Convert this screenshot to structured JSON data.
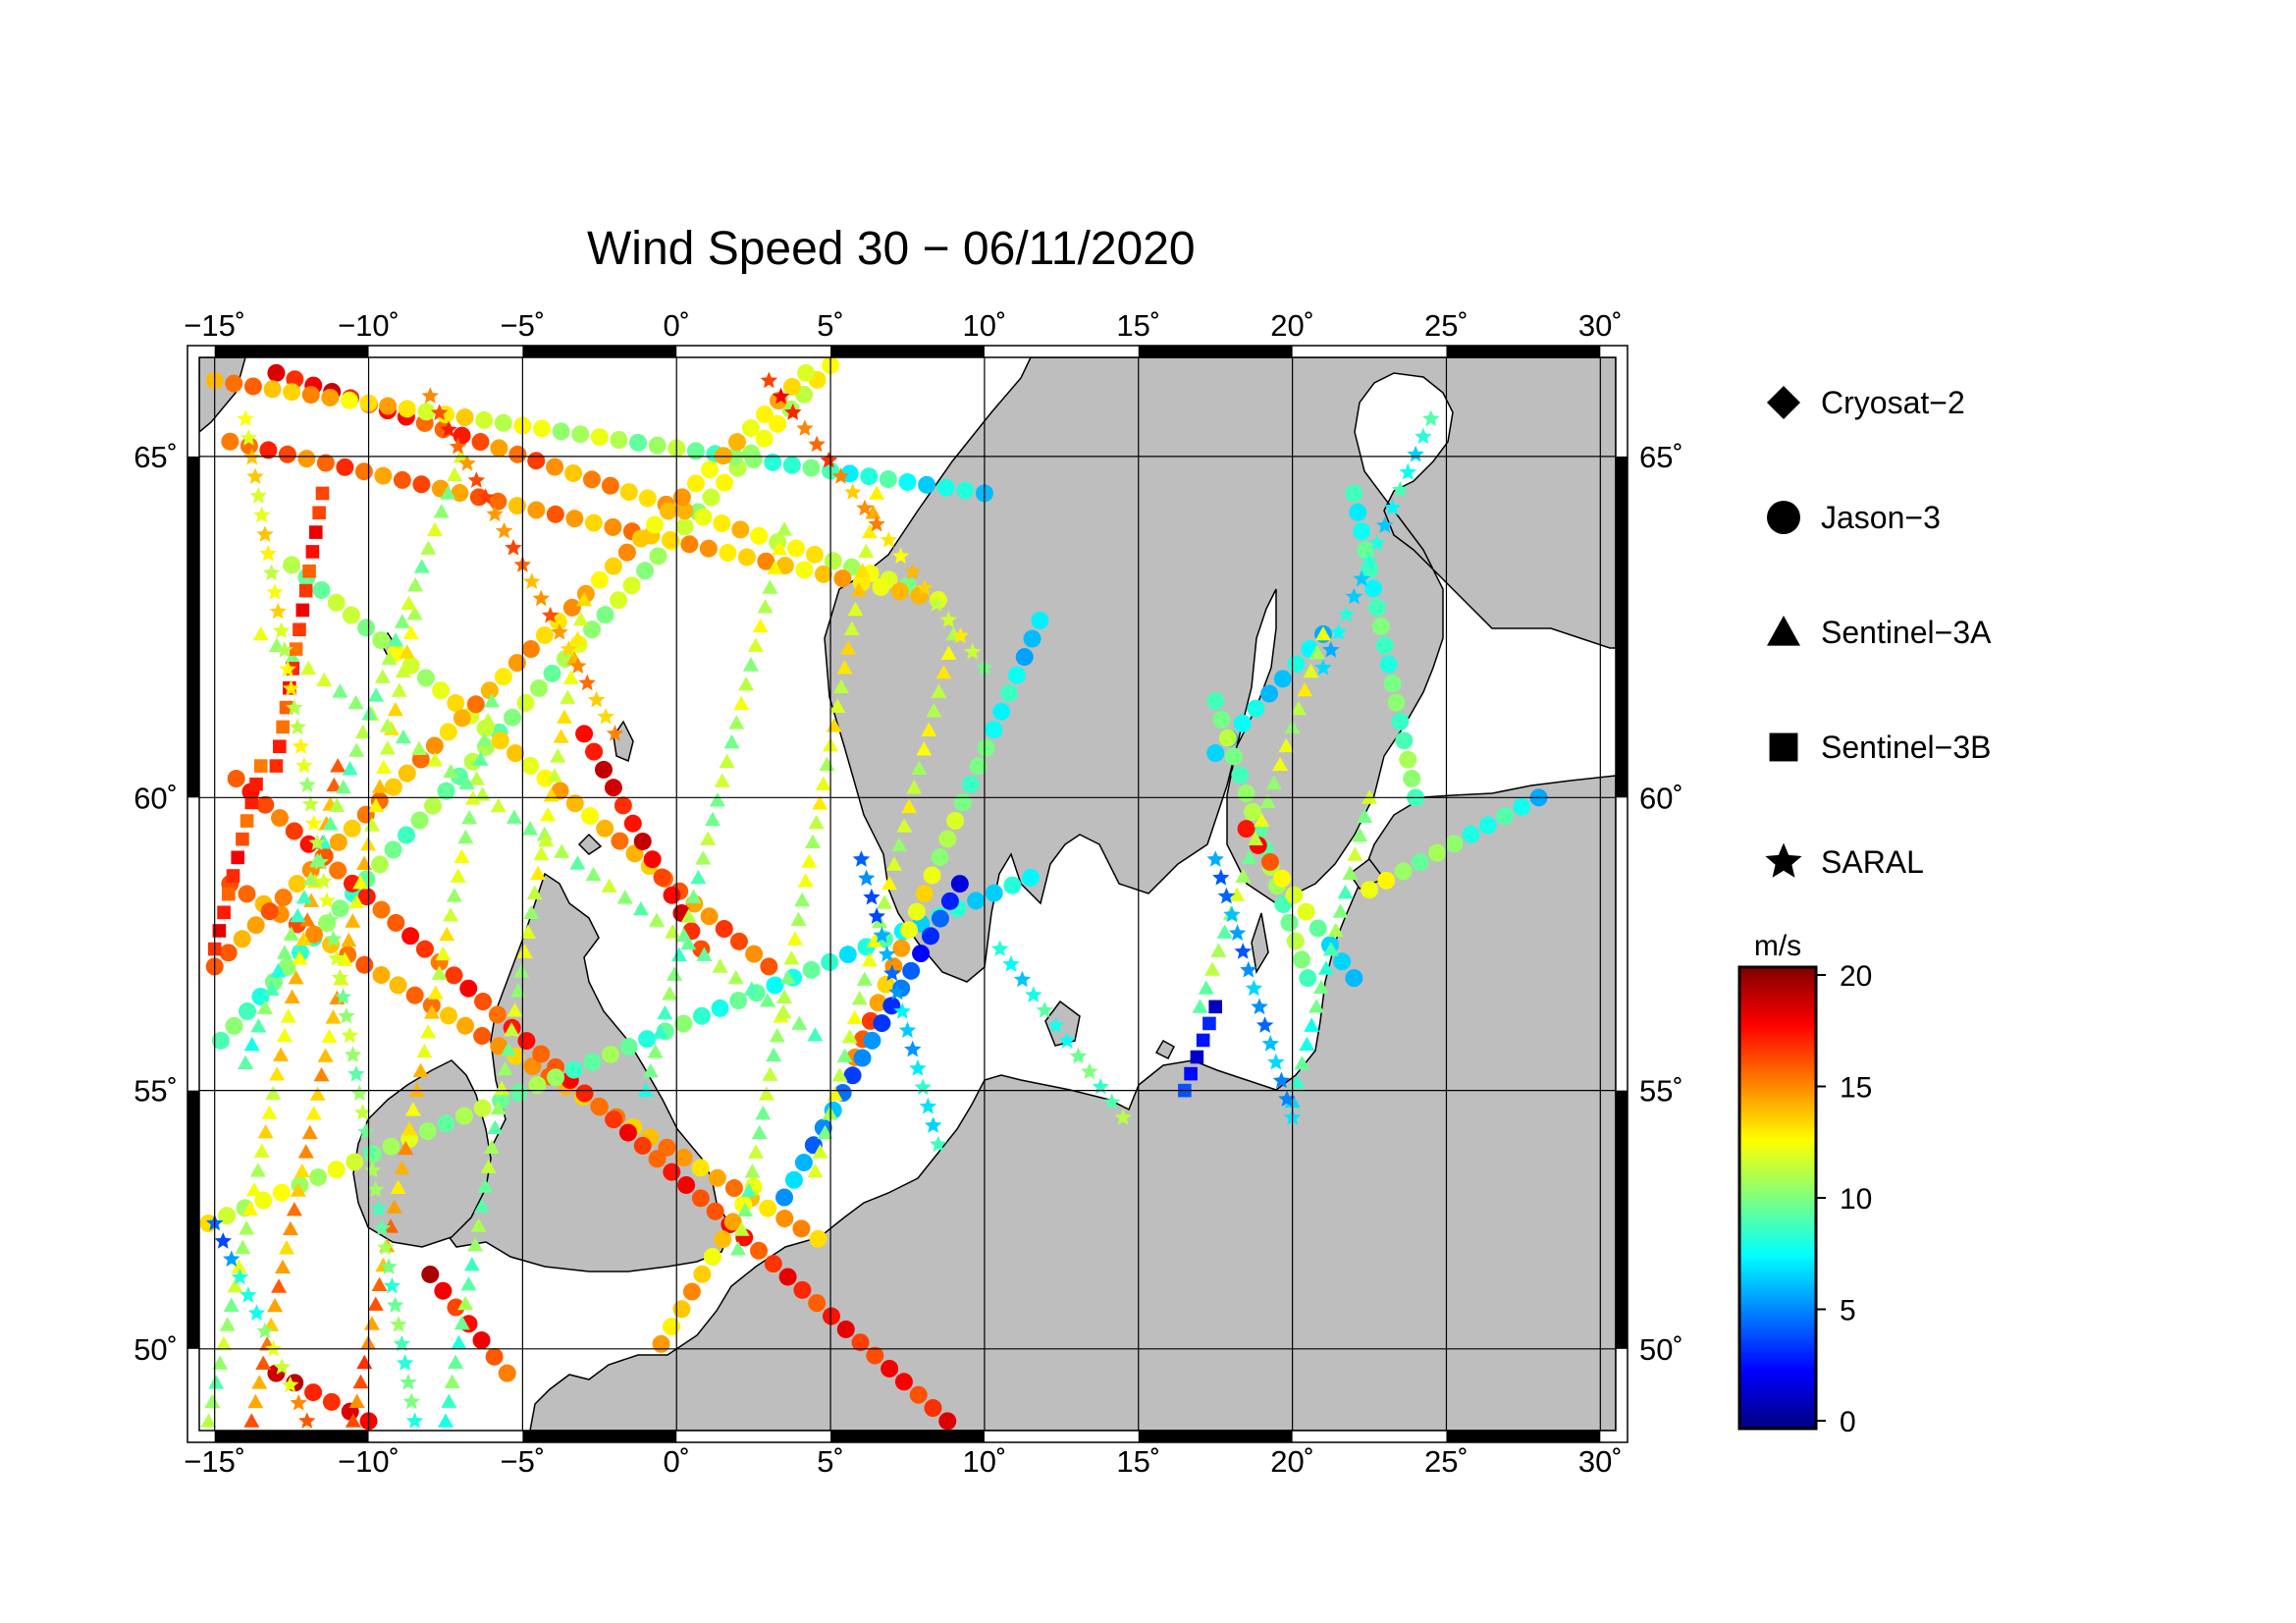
{
  "title": "Wind Speed 30 − 06/11/2020",
  "map": {
    "lon_range": [
      -15.5,
      30.5
    ],
    "lat_range": [
      48.3,
      66.3
    ],
    "lon_ticks": [
      -15,
      -10,
      -5,
      0,
      5,
      10,
      15,
      20,
      25,
      30
    ],
    "lat_ticks": [
      50,
      55,
      60,
      65
    ],
    "lon_tick_labels": [
      "−15˚",
      "−10˚",
      "−5˚",
      "0˚",
      "5˚",
      "10˚",
      "15˚",
      "20˚",
      "25˚",
      "30˚"
    ],
    "lat_tick_labels": [
      "50˚",
      "55˚",
      "60˚",
      "65˚"
    ],
    "ocean_color": "#ffffff",
    "land_color": "#bebebe",
    "grid": true
  },
  "legend": {
    "items": [
      {
        "label": "Cryosat−2",
        "marker": "diamond-icon"
      },
      {
        "label": "Jason−3",
        "marker": "circle-icon"
      },
      {
        "label": "Sentinel−3A",
        "marker": "triangle-icon"
      },
      {
        "label": "Sentinel−3B",
        "marker": "square-icon"
      },
      {
        "label": "SARAL",
        "marker": "star-icon"
      }
    ]
  },
  "colorbar": {
    "unit": "m/s",
    "min": 0,
    "max": 20,
    "tick_values": [
      0,
      5,
      10,
      15,
      20
    ],
    "tick_labels": [
      "0",
      "5",
      "10",
      "15",
      "20"
    ],
    "colors": [
      "#00007f",
      "#0000ff",
      "#007fff",
      "#00ffff",
      "#7fff7f",
      "#ffff00",
      "#ff7f00",
      "#ff0000",
      "#7f0000"
    ]
  },
  "chart_data": {
    "type": "scatter",
    "title": "Wind Speed 30 − 06/11/2020",
    "value_unit": "m/s",
    "tracks": [
      {
        "satellite": "Jason−3",
        "lon": [
          -14.8,
          5.0
        ],
        "lat": [
          55.9,
          66.2
        ],
        "wind": [
          9,
          12
        ]
      },
      {
        "satellite": "Jason−3",
        "lon": [
          -14.5,
          4.6
        ],
        "lat": [
          58.6,
          52.2
        ],
        "wind": [
          15,
          14
        ]
      },
      {
        "satellite": "Jason−3",
        "lon": [
          -12.5,
          3.0
        ],
        "lat": [
          63.5,
          57.2
        ],
        "wind": [
          10,
          16
        ]
      },
      {
        "satellite": "Jason−3",
        "lon": [
          -13.0,
          7.5
        ],
        "lat": [
          66.1,
          63.2
        ],
        "wind": [
          18,
          11
        ]
      },
      {
        "satellite": "Jason−3",
        "lon": [
          -14.5,
          8.5
        ],
        "lat": [
          65.2,
          63.0
        ],
        "wind": [
          16,
          13
        ]
      },
      {
        "satellite": "Jason−3",
        "lon": [
          -15.0,
          10.0
        ],
        "lat": [
          66.0,
          64.5
        ],
        "wind": [
          15,
          7
        ]
      },
      {
        "satellite": "Jason−3",
        "lon": [
          -14.3,
          8.8
        ],
        "lat": [
          60.3,
          48.5
        ],
        "wind": [
          16,
          17
        ]
      },
      {
        "satellite": "Jason−3",
        "lon": [
          -15.0,
          4.2
        ],
        "lat": [
          57.2,
          66.1
        ],
        "wind": [
          15,
          13
        ]
      },
      {
        "satellite": "Jason−3",
        "lon": [
          -15.2,
          11.5
        ],
        "lat": [
          52.5,
          58.7
        ],
        "wind": [
          12,
          7
        ]
      },
      {
        "satellite": "Jason−3",
        "lon": [
          -0.5,
          2.5
        ],
        "lat": [
          50.1,
          53.2
        ],
        "wind": [
          14,
          13
        ]
      },
      {
        "satellite": "Jason−3",
        "lon": [
          -3.0,
          0.8
        ],
        "lat": [
          61.0,
          57.5
        ],
        "wind": [
          18,
          17
        ]
      },
      {
        "satellite": "Jason−3",
        "lon": [
          5.8,
          11.8
        ],
        "lat": [
          55.6,
          62.7
        ],
        "wind": [
          16,
          6
        ]
      },
      {
        "satellite": "Jason−3",
        "lon": [
          3.5,
          9.2
        ],
        "lat": [
          53.0,
          58.6
        ],
        "wind": [
          6,
          3
        ]
      },
      {
        "satellite": "Jason−3",
        "lon": [
          -13.0,
          -10.0
        ],
        "lat": [
          49.5,
          48.5
        ],
        "wind": [
          18,
          17
        ]
      },
      {
        "satellite": "Jason−3",
        "lon": [
          -8.0,
          -5.5
        ],
        "lat": [
          51.5,
          49.5
        ],
        "wind": [
          18,
          16
        ]
      },
      {
        "satellite": "Jason−3",
        "lon": [
          22.0,
          24.0
        ],
        "lat": [
          64.5,
          60.0
        ],
        "wind": [
          8,
          10
        ]
      },
      {
        "satellite": "Jason−3",
        "lon": [
          17.5,
          21.0
        ],
        "lat": [
          60.7,
          62.5
        ],
        "wind": [
          7,
          7
        ]
      },
      {
        "satellite": "Jason−3",
        "lon": [
          17.5,
          20.5
        ],
        "lat": [
          61.5,
          57.0
        ],
        "wind": [
          10,
          10
        ]
      },
      {
        "satellite": "Jason−3",
        "lon": [
          18.5,
          22.0
        ],
        "lat": [
          59.5,
          57.0
        ],
        "wind": [
          18,
          5
        ]
      },
      {
        "satellite": "Jason−3",
        "lon": [
          22.5,
          28.0
        ],
        "lat": [
          58.5,
          60.0
        ],
        "wind": [
          12,
          7
        ]
      },
      {
        "satellite": "Sentinel−3A",
        "lon": [
          -15.2,
          -11.0
        ],
        "lat": [
          48.5,
          60.5
        ],
        "wind": [
          10,
          15
        ]
      },
      {
        "satellite": "Sentinel−3A",
        "lon": [
          -13.8,
          -8.5
        ],
        "lat": [
          48.5,
          62.8
        ],
        "wind": [
          15,
          12
        ]
      },
      {
        "satellite": "Sentinel−3A",
        "lon": [
          -10.5,
          -6.0
        ],
        "lat": [
          48.5,
          61.5
        ],
        "wind": [
          16,
          10
        ]
      },
      {
        "satellite": "Sentinel−3A",
        "lon": [
          -7.5,
          -3.0
        ],
        "lat": [
          48.5,
          63.0
        ],
        "wind": [
          9,
          13
        ]
      },
      {
        "satellite": "Sentinel−3A",
        "lon": [
          -1.0,
          3.5
        ],
        "lat": [
          55.0,
          64.0
        ],
        "wind": [
          9,
          12
        ]
      },
      {
        "satellite": "Sentinel−3A",
        "lon": [
          2.0,
          6.5
        ],
        "lat": [
          52.0,
          64.5
        ],
        "wind": [
          10,
          13
        ]
      },
      {
        "satellite": "Sentinel−3A",
        "lon": [
          4.5,
          9.0
        ],
        "lat": [
          53.5,
          62.5
        ],
        "wind": [
          11,
          12
        ]
      },
      {
        "satellite": "Sentinel−3A",
        "lon": [
          -13.5,
          4.5
        ],
        "lat": [
          62.5,
          56.0
        ],
        "wind": [
          11,
          10
        ]
      },
      {
        "satellite": "Sentinel−3A",
        "lon": [
          -14.0,
          -7.0
        ],
        "lat": [
          55.5,
          65.0
        ],
        "wind": [
          9,
          11
        ]
      },
      {
        "satellite": "Sentinel−3A",
        "lon": [
          17.0,
          21.0
        ],
        "lat": [
          56.5,
          62.5
        ],
        "wind": [
          10,
          12
        ]
      },
      {
        "satellite": "Sentinel−3A",
        "lon": [
          20.0,
          22.5
        ],
        "lat": [
          54.8,
          60.0
        ],
        "wind": [
          8,
          11
        ]
      },
      {
        "satellite": "Sentinel−3B",
        "lon": [
          -15.0,
          -13.5
        ],
        "lat": [
          57.5,
          60.5
        ],
        "wind": [
          17,
          16
        ]
      },
      {
        "satellite": "Sentinel−3B",
        "lon": [
          -13.0,
          -11.5
        ],
        "lat": [
          60.5,
          64.5
        ],
        "wind": [
          16,
          17
        ]
      },
      {
        "satellite": "Sentinel−3B",
        "lon": [
          16.5,
          17.5
        ],
        "lat": [
          55.0,
          56.5
        ],
        "wind": [
          3,
          2
        ]
      },
      {
        "satellite": "SARAL",
        "lon": [
          -15.0,
          -12.0
        ],
        "lat": [
          52.5,
          48.5
        ],
        "wind": [
          4,
          15
        ]
      },
      {
        "satellite": "SARAL",
        "lon": [
          -14.0,
          -8.5
        ],
        "lat": [
          65.5,
          48.5
        ],
        "wind": [
          13,
          9
        ]
      },
      {
        "satellite": "SARAL",
        "lon": [
          -8.0,
          -2.0
        ],
        "lat": [
          65.8,
          61.0
        ],
        "wind": [
          16,
          14
        ]
      },
      {
        "satellite": "SARAL",
        "lon": [
          3.0,
          10.0
        ],
        "lat": [
          66.0,
          62.0
        ],
        "wind": [
          17,
          11
        ]
      },
      {
        "satellite": "SARAL",
        "lon": [
          6.0,
          8.5
        ],
        "lat": [
          59.0,
          54.0
        ],
        "wind": [
          4,
          8
        ]
      },
      {
        "satellite": "SARAL",
        "lon": [
          10.5,
          14.5
        ],
        "lat": [
          57.5,
          54.5
        ],
        "wind": [
          7,
          10
        ]
      },
      {
        "satellite": "SARAL",
        "lon": [
          17.5,
          20.0
        ],
        "lat": [
          59.0,
          54.5
        ],
        "wind": [
          5,
          6
        ]
      },
      {
        "satellite": "SARAL",
        "lon": [
          21.0,
          24.5
        ],
        "lat": [
          62.0,
          65.5
        ],
        "wind": [
          7,
          8
        ]
      }
    ]
  }
}
